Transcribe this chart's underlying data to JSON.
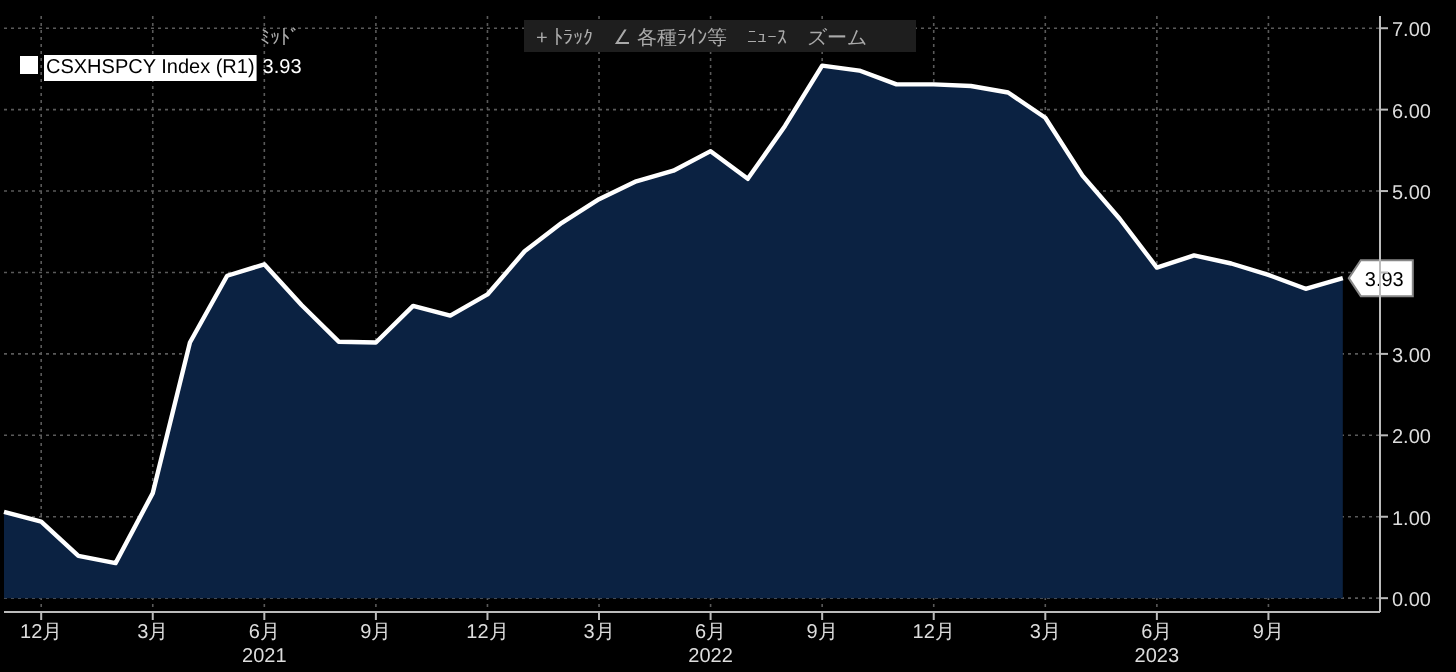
{
  "chart_data": {
    "type": "area",
    "x": [
      "2020-11",
      "2020-12",
      "2021-01",
      "2021-02",
      "2021-03",
      "2021-04",
      "2021-05",
      "2021-06",
      "2021-07",
      "2021-08",
      "2021-09",
      "2021-10",
      "2021-11",
      "2021-12",
      "2022-01",
      "2022-02",
      "2022-03",
      "2022-04",
      "2022-05",
      "2022-06",
      "2022-07",
      "2022-08",
      "2022-09",
      "2022-10",
      "2022-11",
      "2022-12",
      "2023-01",
      "2023-02",
      "2023-03",
      "2023-04",
      "2023-05",
      "2023-06",
      "2023-07",
      "2023-08",
      "2023-09",
      "2023-10",
      "2023-11"
    ],
    "series": [
      {
        "name": "CSXHSPCY Index (R1)",
        "color": "#ffffff",
        "values": [
          1.06,
          0.94,
          0.52,
          0.43,
          1.29,
          3.14,
          3.96,
          4.1,
          3.6,
          3.15,
          3.14,
          3.59,
          3.47,
          3.73,
          4.26,
          4.61,
          4.9,
          5.12,
          5.25,
          5.49,
          5.15,
          5.8,
          6.54,
          6.48,
          6.31,
          6.31,
          6.29,
          6.21,
          5.9,
          5.19,
          4.66,
          4.06,
          4.21,
          4.11,
          3.97,
          3.8,
          3.93
        ],
        "value_labels": [
          null,
          null,
          null,
          null,
          null,
          null,
          null,
          null,
          null,
          null,
          null,
          null,
          null,
          null,
          null,
          null,
          null,
          null,
          null,
          null,
          null,
          null,
          null,
          null,
          null,
          null,
          null,
          null,
          null,
          null,
          null,
          null,
          null,
          null,
          null,
          null,
          "3.93"
        ]
      }
    ],
    "xlim": [
      "2020-11",
      "2023-12"
    ],
    "xticks": [
      {
        "value": "2020-12",
        "label": "12月"
      },
      {
        "value": "2021-03",
        "label": "3月"
      },
      {
        "value": "2021-06",
        "label": "6月\n2021"
      },
      {
        "value": "2021-09",
        "label": "9月"
      },
      {
        "value": "2021-12",
        "label": "12月"
      },
      {
        "value": "2022-03",
        "label": "3月"
      },
      {
        "value": "2022-06",
        "label": "6月\n2022"
      },
      {
        "value": "2022-09",
        "label": "9月"
      },
      {
        "value": "2022-12",
        "label": "12月"
      },
      {
        "value": "2023-03",
        "label": "3月"
      },
      {
        "value": "2023-06",
        "label": "6月\n2023"
      },
      {
        "value": "2023-09",
        "label": "9月"
      }
    ],
    "ylim": [
      -0.17,
      7.15
    ],
    "yticks": [
      {
        "value": 0,
        "label": "0.00"
      },
      {
        "value": 1,
        "label": "1.00"
      },
      {
        "value": 2,
        "label": "2.00"
      },
      {
        "value": 3,
        "label": "3.00"
      },
      {
        "value": 4,
        "label": null
      },
      {
        "value": 5,
        "label": "5.00"
      },
      {
        "value": 6,
        "label": "6.00"
      },
      {
        "value": 7,
        "label": "7.00"
      }
    ],
    "grid": true,
    "legend": "top left",
    "annotations": [
      "ﾐｯﾄﾞ",
      "3.93",
      "+ ﾄﾗｯｸ",
      "∠ 各種ﾗｲﾝ等",
      "ﾆｭｰｽ",
      "ズーム"
    ]
  }
}
